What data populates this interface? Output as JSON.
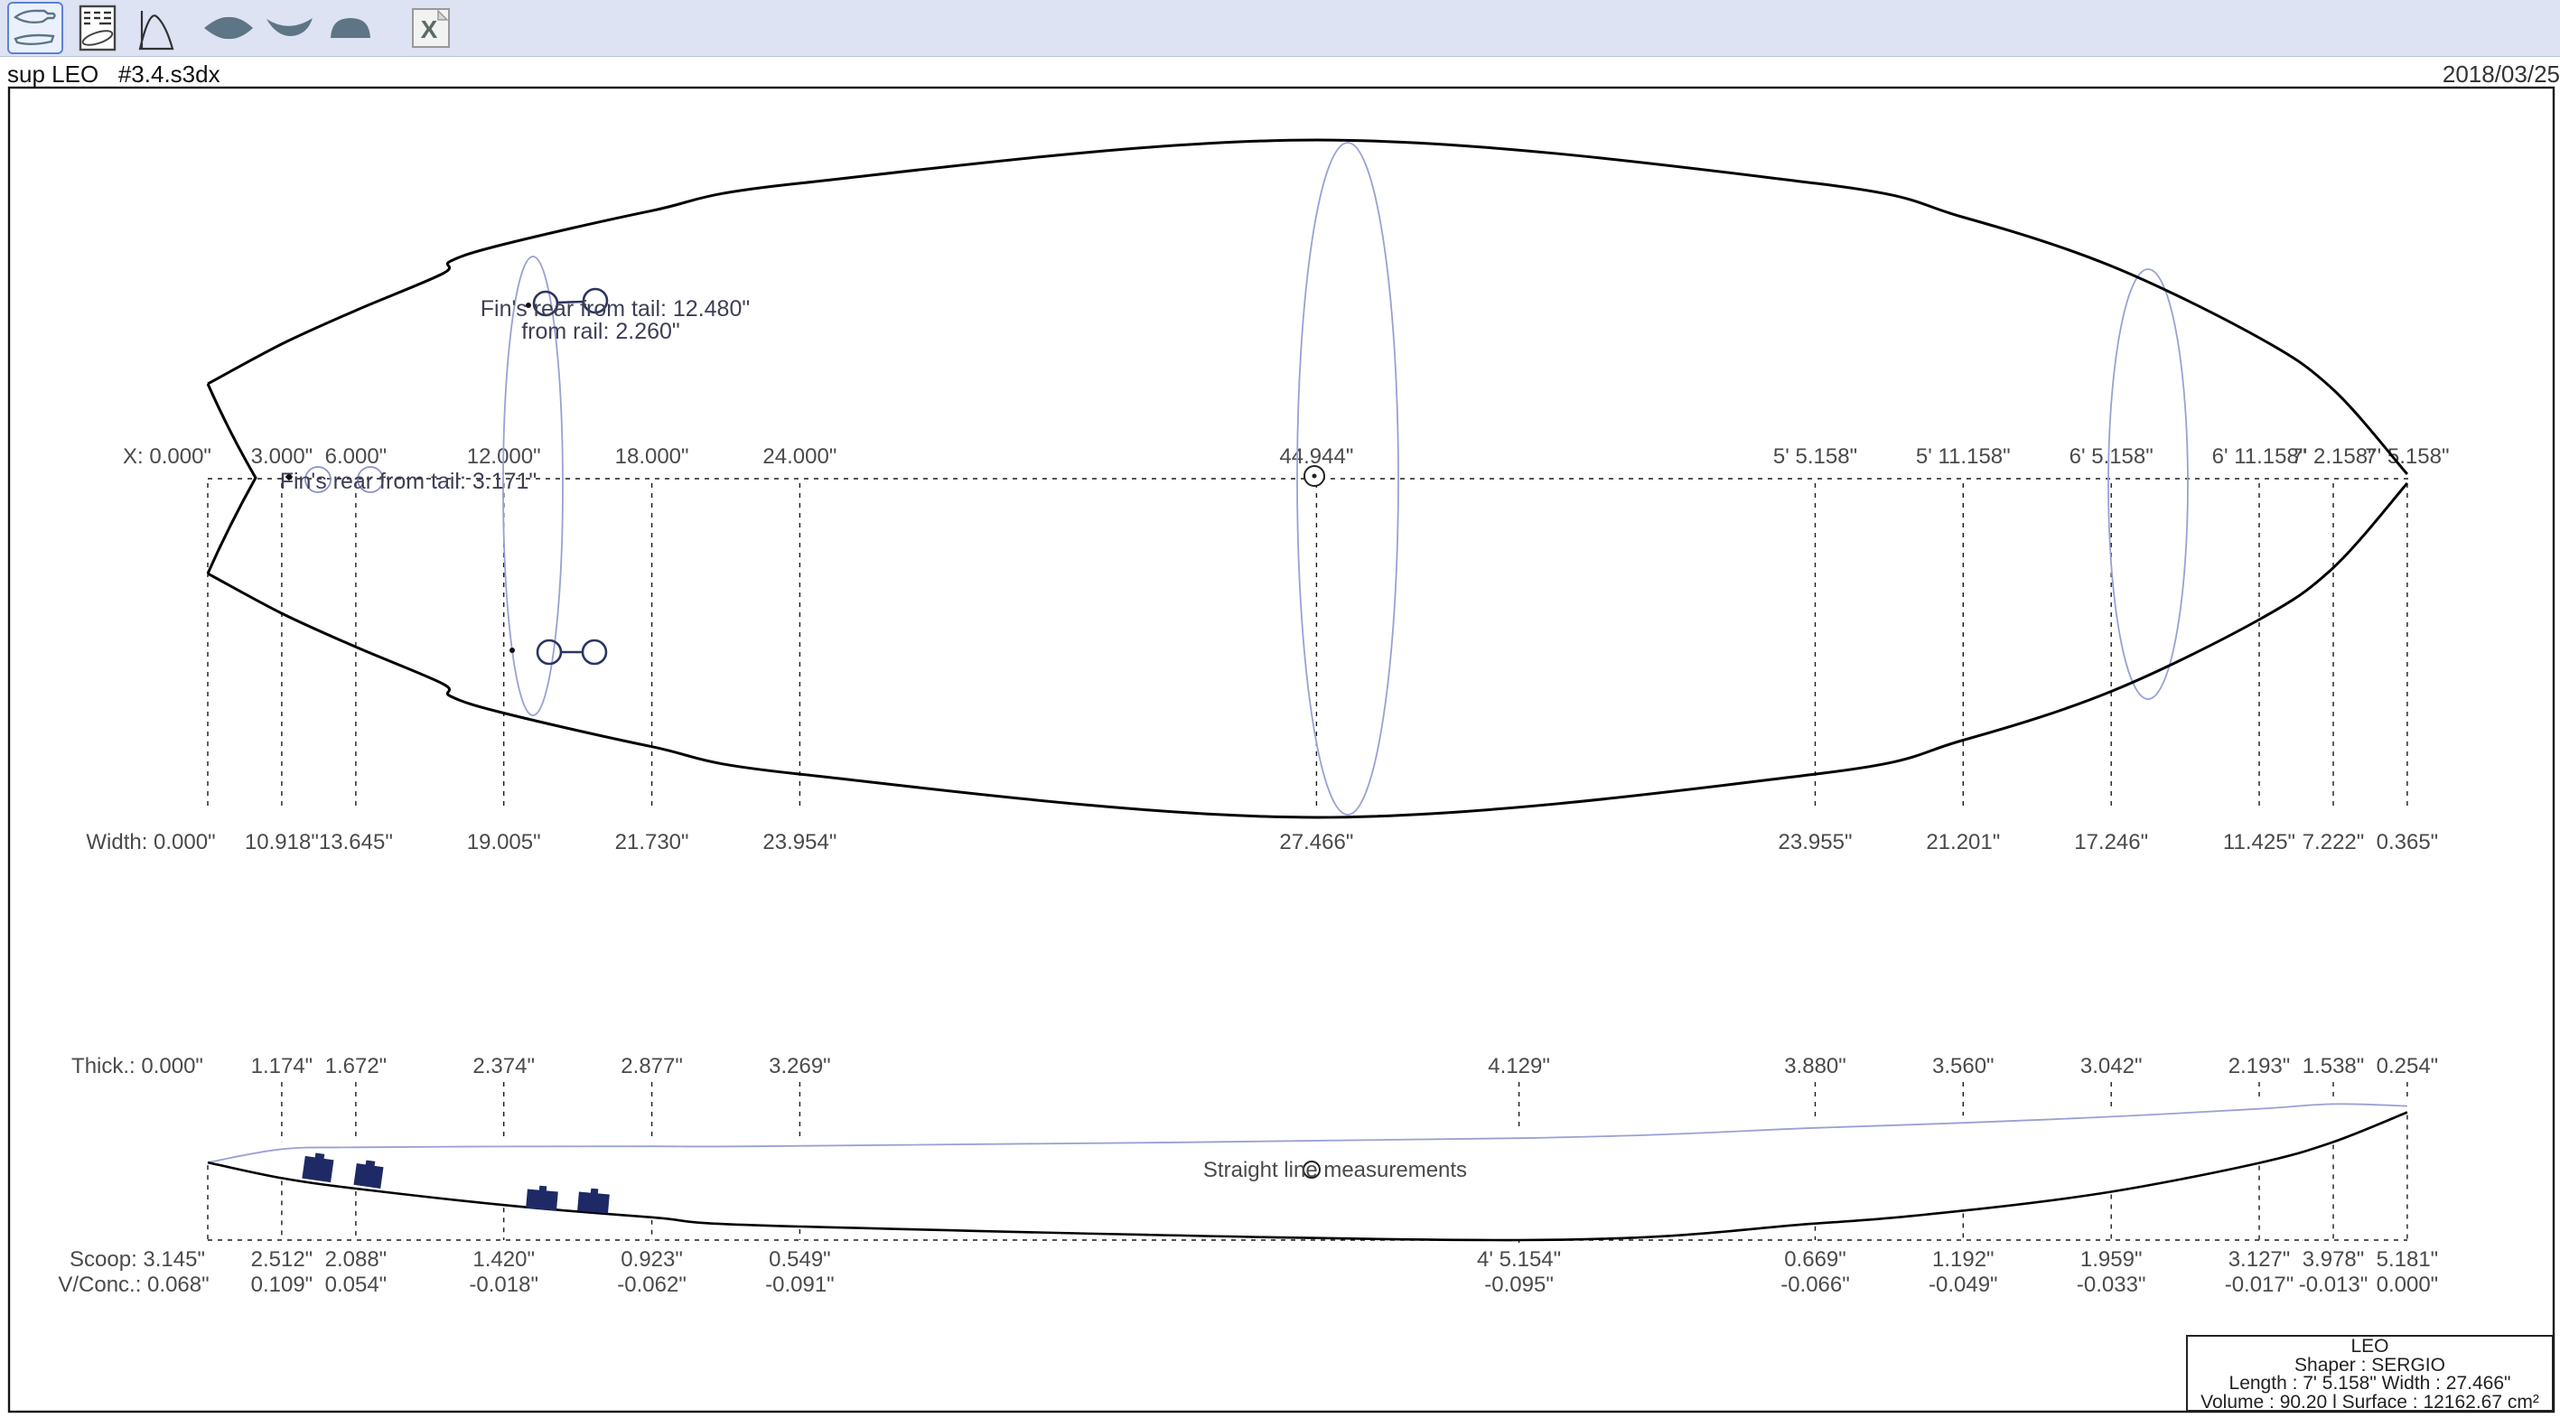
{
  "window": {
    "title": "sup LEO   #3.4.s3dx",
    "date": "2018/03/25"
  },
  "toolbar": {
    "icons": [
      "outline-views",
      "spec-sheet",
      "foil-curve",
      "plan-view",
      "rocker-view",
      "section-view",
      "excel-export"
    ],
    "selected_icon": "outline-views"
  },
  "annotations": {
    "fin_side_line1": "Fin's rear from tail: 12.480\"",
    "fin_side_line2": "from rail: 2.260\"",
    "fin_center": "Fin's rear from tail: 3.171\"",
    "straight_line": "Straight line measurements"
  },
  "measurements": {
    "plan_stations_in": [
      0,
      3,
      6,
      12,
      18,
      24,
      44.944,
      65.158,
      71.158,
      77.158,
      83.158,
      86.158,
      89.158
    ],
    "profile_stations_in": [
      0,
      3,
      6,
      12,
      18,
      24,
      53.154,
      65.158,
      71.158,
      77.158,
      83.158,
      86.158,
      89.158
    ],
    "x_labels": [
      "X: 0.000\"",
      "3.000\"",
      "6.000\"",
      "12.000\"",
      "18.000\"",
      "24.000\"",
      "44.944\"",
      "5' 5.158\"",
      "5' 11.158\"",
      "6' 5.158\"",
      "6' 11.158\"",
      "7' 2.158\"",
      "7' 5.158\""
    ],
    "width_labels": [
      "Width: 0.000\"",
      "10.918\"",
      "13.645\"",
      "19.005\"",
      "21.730\"",
      "23.954\"",
      "27.466\"",
      "23.955\"",
      "21.201\"",
      "17.246\"",
      "11.425\"",
      "7.222\"",
      "0.365\""
    ],
    "width_values_in": [
      0,
      10.918,
      13.645,
      19.005,
      21.73,
      23.954,
      27.466,
      23.955,
      21.201,
      17.246,
      11.425,
      7.222,
      0.365
    ],
    "thick_labels": [
      "Thick.: 0.000\"",
      "1.174\"",
      "1.672\"",
      "2.374\"",
      "2.877\"",
      "3.269\"",
      "4.129\"",
      "3.880\"",
      "3.560\"",
      "3.042\"",
      "2.193\"",
      "1.538\"",
      "0.254\""
    ],
    "thick_values_in": [
      0,
      1.174,
      1.672,
      2.374,
      2.877,
      3.269,
      4.129,
      3.88,
      3.56,
      3.042,
      2.193,
      1.538,
      0.254
    ],
    "scoop_labels": [
      "Scoop: 3.145\"",
      "2.512\"",
      "2.088\"",
      "1.420\"",
      "0.923\"",
      "0.549\"",
      "4' 5.154\"",
      "0.669\"",
      "1.192\"",
      "1.959\"",
      "3.127\"",
      "3.978\"",
      "5.181\""
    ],
    "scoop_values_in": [
      3.145,
      2.512,
      2.088,
      1.42,
      0.923,
      0.549,
      0,
      0.669,
      1.192,
      1.959,
      3.127,
      3.978,
      5.181
    ],
    "vconc_labels": [
      "V/Conc.: 0.068\"",
      "0.109\"",
      "0.054\"",
      "-0.018\"",
      "-0.062\"",
      "-0.091\"",
      "-0.095\"",
      "-0.066\"",
      "-0.049\"",
      "-0.033\"",
      "-0.017\"",
      "-0.013\"",
      "0.000\""
    ]
  },
  "infobox": {
    "model": "LEO",
    "shaper": "Shaper : SERGIO",
    "dims": "Length : 7' 5.158\" Width  : 27.466\"",
    "volume": "Volume : 90.20 l  Surface : 12162.67 cm²"
  },
  "colors": {
    "toolbar_bg": "#dee3f3",
    "selected_border": "#5d82d6",
    "icon_fill": "#5e7585",
    "guide_blue": "#99a1d4",
    "fin_navy": "#1e2a66",
    "text_gray": "#4a4a4c"
  }
}
